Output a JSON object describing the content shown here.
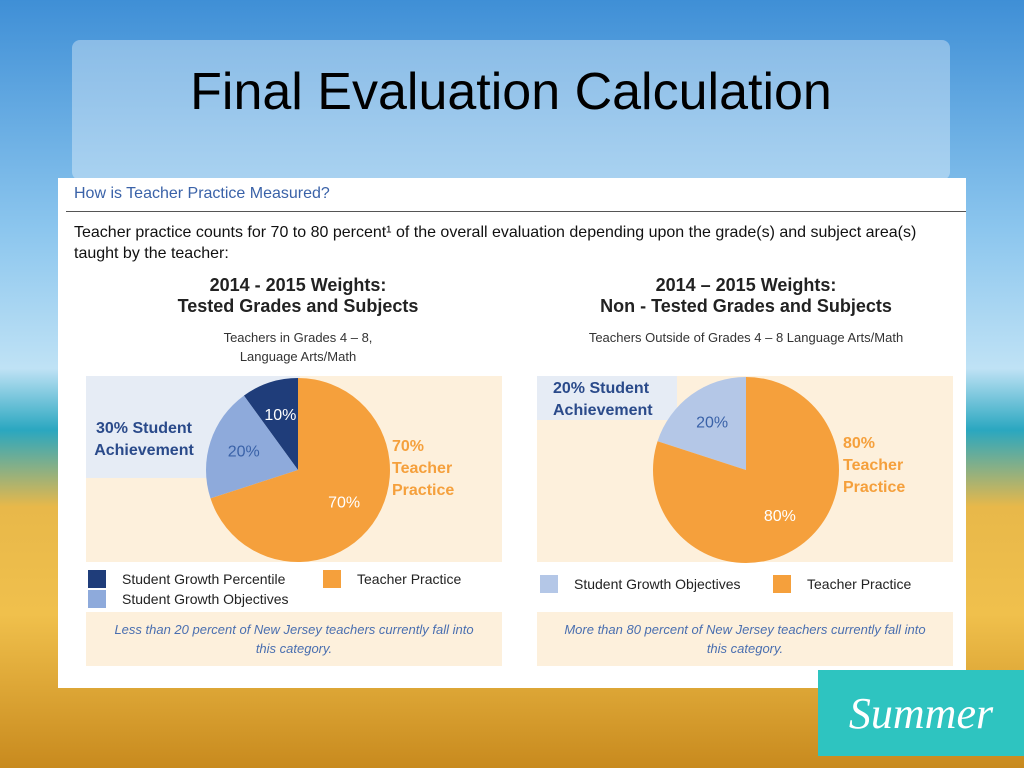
{
  "title": "Final Evaluation Calculation",
  "panel": {
    "heading": "How is Teacher Practice Measured?",
    "intro": "Teacher practice counts for 70 to 80 percent¹ of the overall evaluation depending upon the grade(s) and subject area(s) taught by the teacher:"
  },
  "chart_data": [
    {
      "type": "pie",
      "title": "2014 - 2015 Weights:",
      "subtitle": "Tested Grades and Subjects",
      "note": "Teachers in Grades 4 – 8, Language Arts/Math",
      "categories": [
        "Student Growth Percentile",
        "Student Growth Objectives",
        "Teacher Practice"
      ],
      "values": [
        10,
        20,
        70
      ],
      "value_labels": [
        "10%",
        "20%",
        "70%"
      ],
      "colors": [
        "#1f3d7a",
        "#8eaadb",
        "#f5a03c"
      ],
      "annotations": [
        "30% Student Achievement",
        "70% Teacher Practice"
      ],
      "footnote": "Less than 20 percent of New Jersey teachers currently fall into this category."
    },
    {
      "type": "pie",
      "title": "2014 – 2015 Weights:",
      "subtitle": "Non - Tested Grades and Subjects",
      "note": "Teachers Outside of Grades 4 – 8 Language Arts/Math",
      "categories": [
        "Student Growth Objectives",
        "Teacher Practice"
      ],
      "values": [
        20,
        80
      ],
      "value_labels": [
        "20%",
        "80%"
      ],
      "colors": [
        "#b4c7e7",
        "#f5a03c"
      ],
      "annotations": [
        "20% Student Achievement",
        "80% Teacher Practice"
      ],
      "footnote": "More than 80 percent of New Jersey teachers currently fall into this category."
    }
  ],
  "badge": "Summer"
}
